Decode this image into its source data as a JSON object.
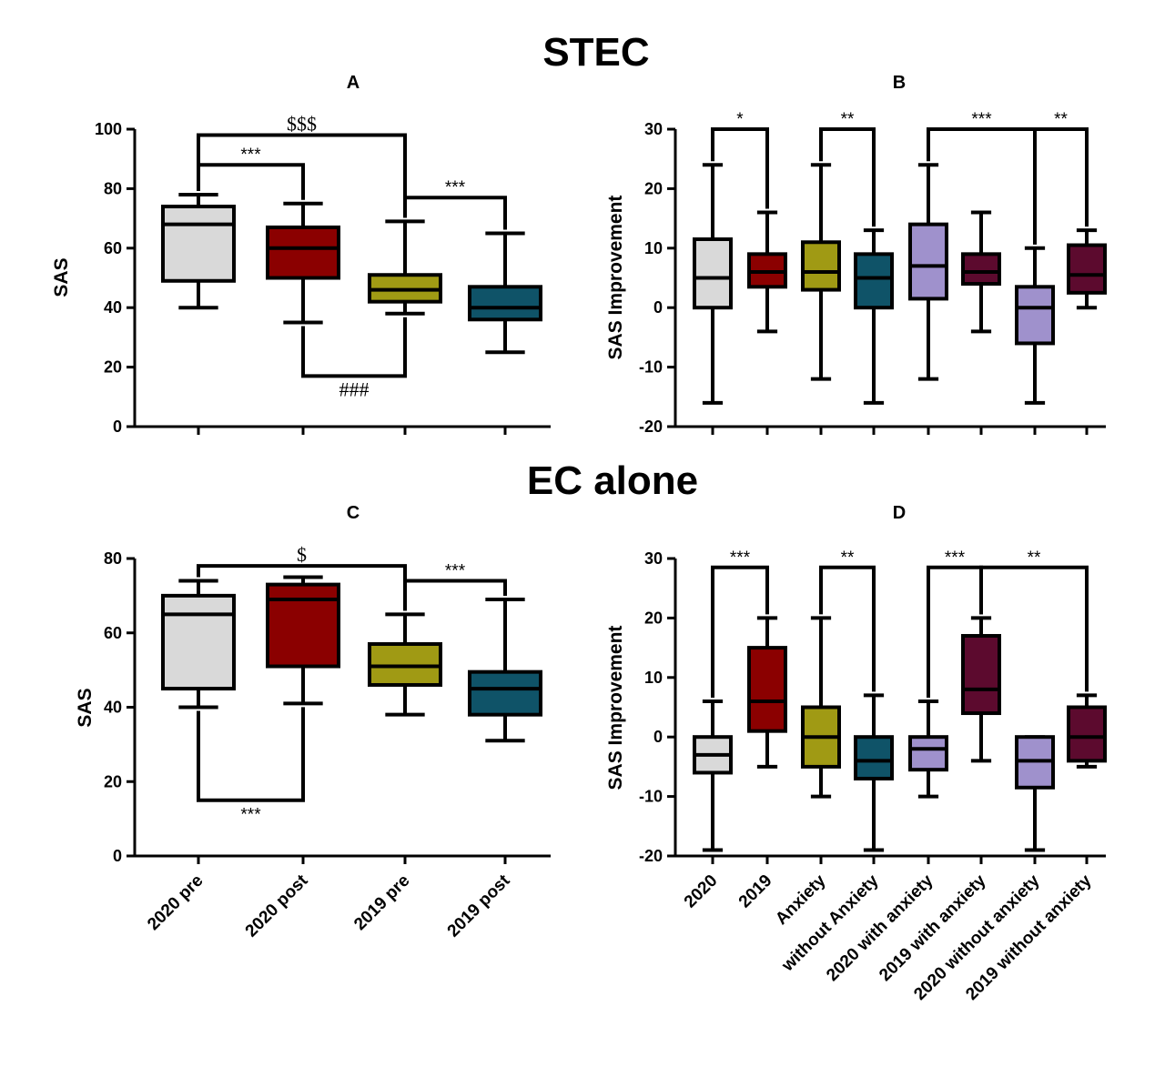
{
  "titles": {
    "top": "STEC",
    "bottom": "EC alone"
  },
  "chart_data": [
    {
      "panel": "A",
      "type": "boxplot",
      "ylabel": "SAS",
      "ylim": [
        0,
        100
      ],
      "yticks": [
        0,
        20,
        40,
        60,
        80,
        100
      ],
      "categories": [],
      "boxes": [
        {
          "min": 40,
          "q1": 49,
          "median": 68,
          "q3": 74,
          "max": 78,
          "color": "#d9d9d9"
        },
        {
          "min": 35,
          "q1": 50,
          "median": 60,
          "q3": 67,
          "max": 75,
          "color": "#8b0000"
        },
        {
          "min": 38,
          "q1": 42,
          "median": 46,
          "q3": 51,
          "max": 69,
          "color": "#a09a14"
        },
        {
          "min": 25,
          "q1": 36,
          "median": 40,
          "q3": 47,
          "max": 65,
          "color": "#0f5368"
        }
      ],
      "brackets": [
        {
          "from": 0,
          "to": 2,
          "y": 98,
          "dir": "down",
          "label": "$$$",
          "serif": true
        },
        {
          "from": 0,
          "to": 1,
          "y": 88,
          "dir": "down",
          "label": "***"
        },
        {
          "from": 2,
          "to": 3,
          "y": 77,
          "dir": "down",
          "label": "***"
        },
        {
          "from": 1,
          "to": 2,
          "y": 17,
          "dir": "up",
          "label": "###",
          "serif": true
        }
      ]
    },
    {
      "panel": "B",
      "type": "boxplot",
      "ylabel": "SAS Improvement",
      "ylim": [
        -20,
        30
      ],
      "yticks": [
        -20,
        -10,
        0,
        10,
        20,
        30
      ],
      "categories": [],
      "boxes": [
        {
          "min": -16,
          "q1": 0,
          "median": 5,
          "q3": 11.5,
          "max": 24,
          "color": "#d9d9d9"
        },
        {
          "min": -4,
          "q1": 3.5,
          "median": 6,
          "q3": 9,
          "max": 16,
          "color": "#8b0000"
        },
        {
          "min": -12,
          "q1": 3,
          "median": 6,
          "q3": 11,
          "max": 24,
          "color": "#a09a14"
        },
        {
          "min": -16,
          "q1": 0,
          "median": 5,
          "q3": 9,
          "max": 13,
          "color": "#0f5368"
        },
        {
          "min": -12,
          "q1": 1.5,
          "median": 7,
          "q3": 14,
          "max": 24,
          "color": "#9f91cc"
        },
        {
          "min": -4,
          "q1": 4,
          "median": 6,
          "q3": 9,
          "max": 16,
          "color": "#5c0a2e"
        },
        {
          "min": -16,
          "q1": -6,
          "median": 0,
          "q3": 3.5,
          "max": 10,
          "color": "#9f91cc"
        },
        {
          "min": 0,
          "q1": 2.5,
          "median": 5.5,
          "q3": 10.5,
          "max": 13,
          "color": "#5c0a2e"
        }
      ],
      "brackets": [
        {
          "from": 0,
          "to": 1,
          "y": 30,
          "dir": "down",
          "label": "*"
        },
        {
          "from": 2,
          "to": 3,
          "y": 30,
          "dir": "down",
          "label": "**"
        },
        {
          "from": 4,
          "to": 6,
          "y": 30,
          "dir": "down",
          "label": "***"
        },
        {
          "from": 6,
          "to": 7,
          "y": 30,
          "dir": "down",
          "label": "**"
        }
      ]
    },
    {
      "panel": "C",
      "type": "boxplot",
      "ylabel": "SAS",
      "ylim": [
        0,
        80
      ],
      "yticks": [
        0,
        20,
        40,
        60,
        80
      ],
      "categories": [
        "2020 pre",
        "2020 post",
        "2019 pre",
        "2019 post"
      ],
      "boxes": [
        {
          "min": 40,
          "q1": 45,
          "median": 65,
          "q3": 70,
          "max": 74,
          "color": "#d9d9d9"
        },
        {
          "min": 41,
          "q1": 51,
          "median": 69,
          "q3": 73,
          "max": 75,
          "color": "#8b0000"
        },
        {
          "min": 38,
          "q1": 46,
          "median": 51,
          "q3": 57,
          "max": 65,
          "color": "#a09a14"
        },
        {
          "min": 31,
          "q1": 38,
          "median": 45,
          "q3": 49.5,
          "max": 69,
          "color": "#0f5368"
        }
      ],
      "brackets": [
        {
          "from": 0,
          "to": 2,
          "y": 78,
          "dir": "down",
          "label": "$",
          "serif": true
        },
        {
          "from": 2,
          "to": 3,
          "y": 74,
          "dir": "down",
          "label": "***"
        },
        {
          "from": 0,
          "to": 1,
          "y": 15,
          "dir": "up",
          "label": "***"
        }
      ]
    },
    {
      "panel": "D",
      "type": "boxplot",
      "ylabel": "SAS Improvement",
      "ylim": [
        -20,
        30
      ],
      "yticks": [
        -20,
        -10,
        0,
        10,
        20,
        30
      ],
      "categories": [
        "2020",
        "2019",
        "Anxiety",
        "without Anxiety",
        "2020 with anxiety",
        "2019 with anxiety",
        "2020 without anxiety",
        "2019 without anxiety"
      ],
      "boxes": [
        {
          "min": -19,
          "q1": -6,
          "median": -3,
          "q3": 0,
          "max": 6,
          "color": "#d9d9d9"
        },
        {
          "min": -5,
          "q1": 1,
          "median": 6,
          "q3": 15,
          "max": 20,
          "color": "#8b0000"
        },
        {
          "min": -10,
          "q1": -5,
          "median": 0,
          "q3": 5,
          "max": 20,
          "color": "#a09a14"
        },
        {
          "min": -19,
          "q1": -7,
          "median": -4,
          "q3": 0,
          "max": 7,
          "color": "#0f5368"
        },
        {
          "min": -10,
          "q1": -5.5,
          "median": -2,
          "q3": 0,
          "max": 6,
          "color": "#9f91cc"
        },
        {
          "min": -4,
          "q1": 4,
          "median": 8,
          "q3": 17,
          "max": 20,
          "color": "#5c0a2e"
        },
        {
          "min": -19,
          "q1": -8.5,
          "median": -4,
          "q3": 0,
          "max": 0,
          "color": "#9f91cc"
        },
        {
          "min": -5,
          "q1": -4,
          "median": 0,
          "q3": 5,
          "max": 7,
          "color": "#5c0a2e"
        }
      ],
      "brackets": [
        {
          "from": 0,
          "to": 1,
          "y": 28.5,
          "dir": "down",
          "label": "***"
        },
        {
          "from": 2,
          "to": 3,
          "y": 28.5,
          "dir": "down",
          "label": "**"
        },
        {
          "from": 4,
          "to": 5,
          "y": 28.5,
          "dir": "down",
          "label": "***"
        },
        {
          "from": 5,
          "to": 7,
          "y": 28.5,
          "dir": "down",
          "label": "**"
        }
      ]
    }
  ]
}
